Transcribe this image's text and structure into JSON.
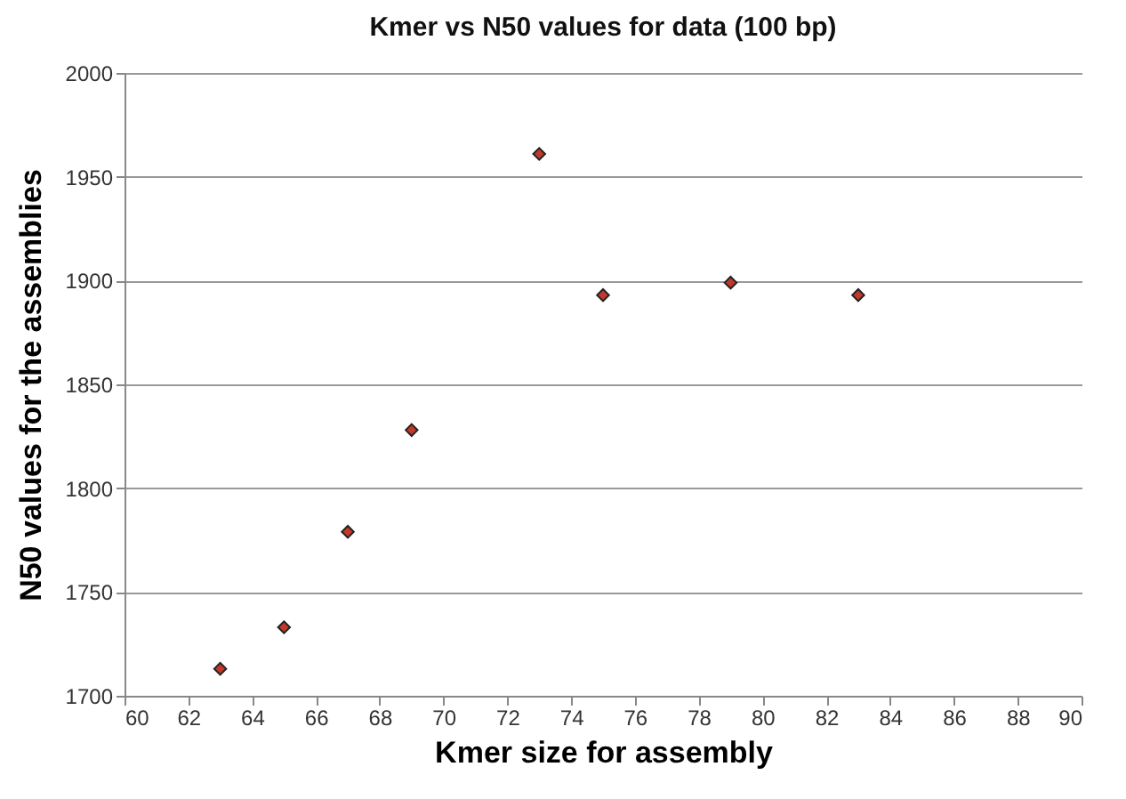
{
  "chart_data": {
    "type": "scatter",
    "title": "Kmer vs N50 values for data (100 bp)",
    "xlabel": "Kmer size for assembly",
    "ylabel": "N50 values for the assemblies",
    "x": [
      63,
      65,
      67,
      69,
      73,
      75,
      79,
      83
    ],
    "series": [
      {
        "color": "#c0392b",
        "values": [
          1713,
          1733,
          1779,
          1828,
          1961,
          1893,
          1899,
          1893
        ]
      }
    ],
    "xlim": [
      60,
      90
    ],
    "xticks": [
      60,
      62,
      64,
      66,
      68,
      70,
      72,
      74,
      76,
      78,
      80,
      82,
      84,
      86,
      88,
      90
    ],
    "ylim": [
      1700,
      2000
    ],
    "yticks": [
      1700,
      1750,
      1800,
      1850,
      1900,
      1950,
      2000
    ],
    "grid": "y",
    "marker": "diamond"
  }
}
